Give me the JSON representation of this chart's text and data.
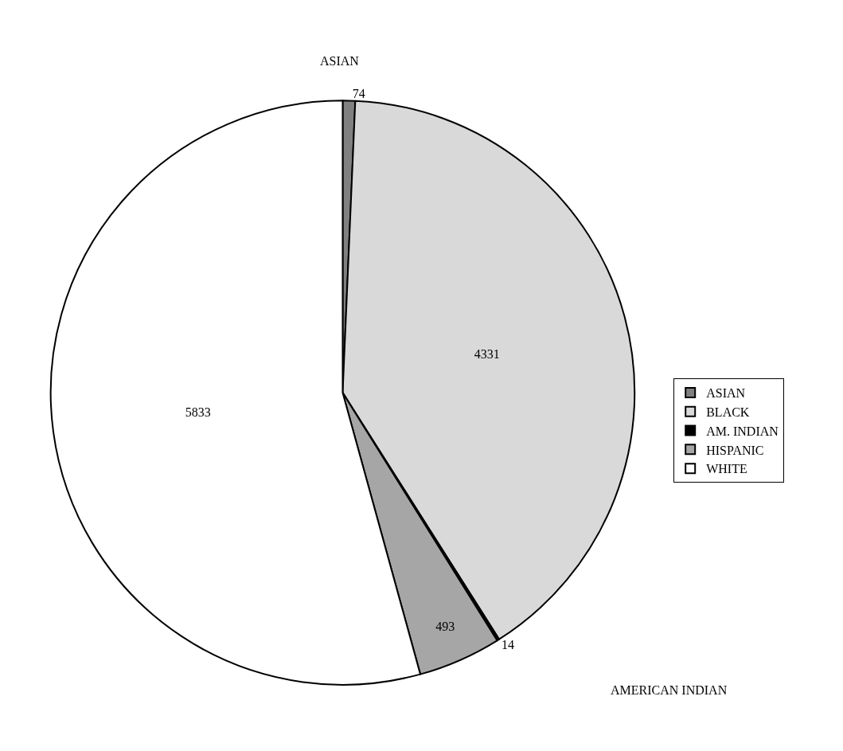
{
  "chart_data": {
    "type": "pie",
    "categories": [
      "ASIAN",
      "BLACK",
      "AM. INDIAN",
      "HISPANIC",
      "WHITE"
    ],
    "values": [
      74,
      4331,
      14,
      493,
      5833
    ],
    "colors": [
      "#808080",
      "#d9d9d9",
      "#000000",
      "#a6a6a6",
      "#ffffff"
    ],
    "data_labels": true,
    "legend": "right",
    "annotations": [
      "ASIAN",
      "AMERICAN INDIAN"
    ]
  }
}
